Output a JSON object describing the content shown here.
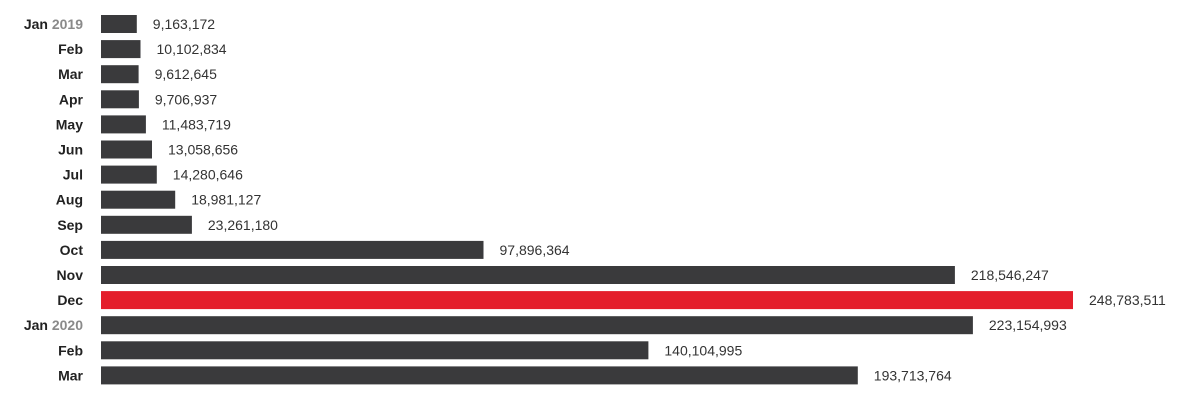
{
  "chart_data": {
    "type": "bar",
    "orientation": "horizontal",
    "categories": [
      {
        "month": "Jan",
        "year": "2019"
      },
      {
        "month": "Feb",
        "year": ""
      },
      {
        "month": "Mar",
        "year": ""
      },
      {
        "month": "Apr",
        "year": ""
      },
      {
        "month": "May",
        "year": ""
      },
      {
        "month": "Jun",
        "year": ""
      },
      {
        "month": "Jul",
        "year": ""
      },
      {
        "month": "Aug",
        "year": ""
      },
      {
        "month": "Sep",
        "year": ""
      },
      {
        "month": "Oct",
        "year": ""
      },
      {
        "month": "Nov",
        "year": ""
      },
      {
        "month": "Dec",
        "year": ""
      },
      {
        "month": "Jan",
        "year": "2020"
      },
      {
        "month": "Feb",
        "year": ""
      },
      {
        "month": "Mar",
        "year": ""
      }
    ],
    "values": [
      9163172,
      10102834,
      9612645,
      9706937,
      11483719,
      13058656,
      14280646,
      18981127,
      23261180,
      97896364,
      218546247,
      248783511,
      223154993,
      140104995,
      193713764
    ],
    "value_labels": [
      "9,163,172",
      "10,102,834",
      "9,612,645",
      "9,706,937",
      "11,483,719",
      "13,058,656",
      "14,280,646",
      "18,981,127",
      "23,261,180",
      "97,896,364",
      "218,546,247",
      "248,783,511",
      "223,154,993",
      "140,104,995",
      "193,713,764"
    ],
    "highlight_index": 11,
    "colors": {
      "bar": "#3a3a3c",
      "highlight": "#e41e2b",
      "month_label": "#222222",
      "year_label": "#8a8a8a",
      "value_label": "#333333"
    },
    "title": "",
    "xlabel": "",
    "ylabel": "",
    "grid": false,
    "legend": "none"
  }
}
